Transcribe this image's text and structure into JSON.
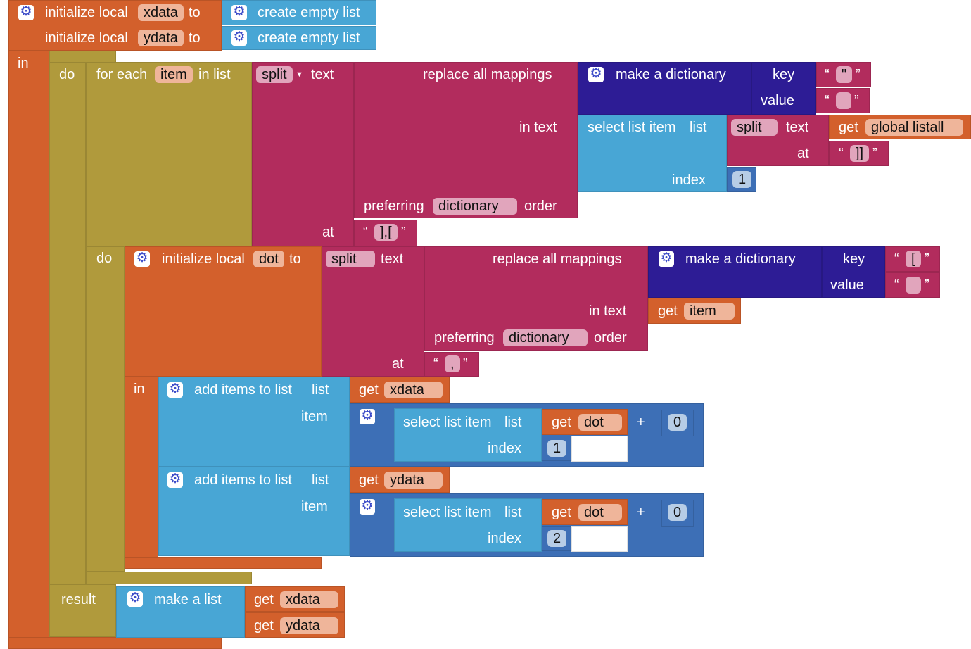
{
  "init": {
    "label": "initialize local",
    "to": "to",
    "x": "xdata",
    "y": "ydata",
    "in": "in"
  },
  "empty": "create empty list",
  "foreach": {
    "do": "do",
    "label": "for each",
    "var": "item",
    "inlist": "in list"
  },
  "split": {
    "op": "split",
    "text": "text",
    "at": "at",
    "sep1": "],[",
    "sep2": ",",
    "sep3": "]]"
  },
  "replace": {
    "label": "replace all mappings",
    "intext": "in text",
    "preferring": "preferring",
    "mode": "dictionary",
    "order": "order"
  },
  "dict": {
    "label": "make a dictionary",
    "key": "key",
    "value": "value",
    "k1": "\"",
    "k2": "["
  },
  "select": {
    "label": "select list item",
    "list": "list",
    "index": "index",
    "i1": "1",
    "i2": "2"
  },
  "get": {
    "get": "get",
    "listall": "global listall",
    "item": "item",
    "xdata": "xdata",
    "ydata": "ydata",
    "dot": "dot"
  },
  "dot": {
    "var": "dot"
  },
  "add": {
    "label": "add items to list",
    "list": "list",
    "item": "item",
    "plus": "+",
    "zero": "0"
  },
  "result": {
    "label": "result",
    "makelist": "make a list"
  },
  "quote_open": "“",
  "quote_close": "”",
  "colors": {
    "variables": "#D3602C",
    "control": "#B09A3C",
    "text": "#B22C5D",
    "dictionary": "#2D1C95",
    "lists": "#48A6D5",
    "math": "#3D6FB6"
  }
}
